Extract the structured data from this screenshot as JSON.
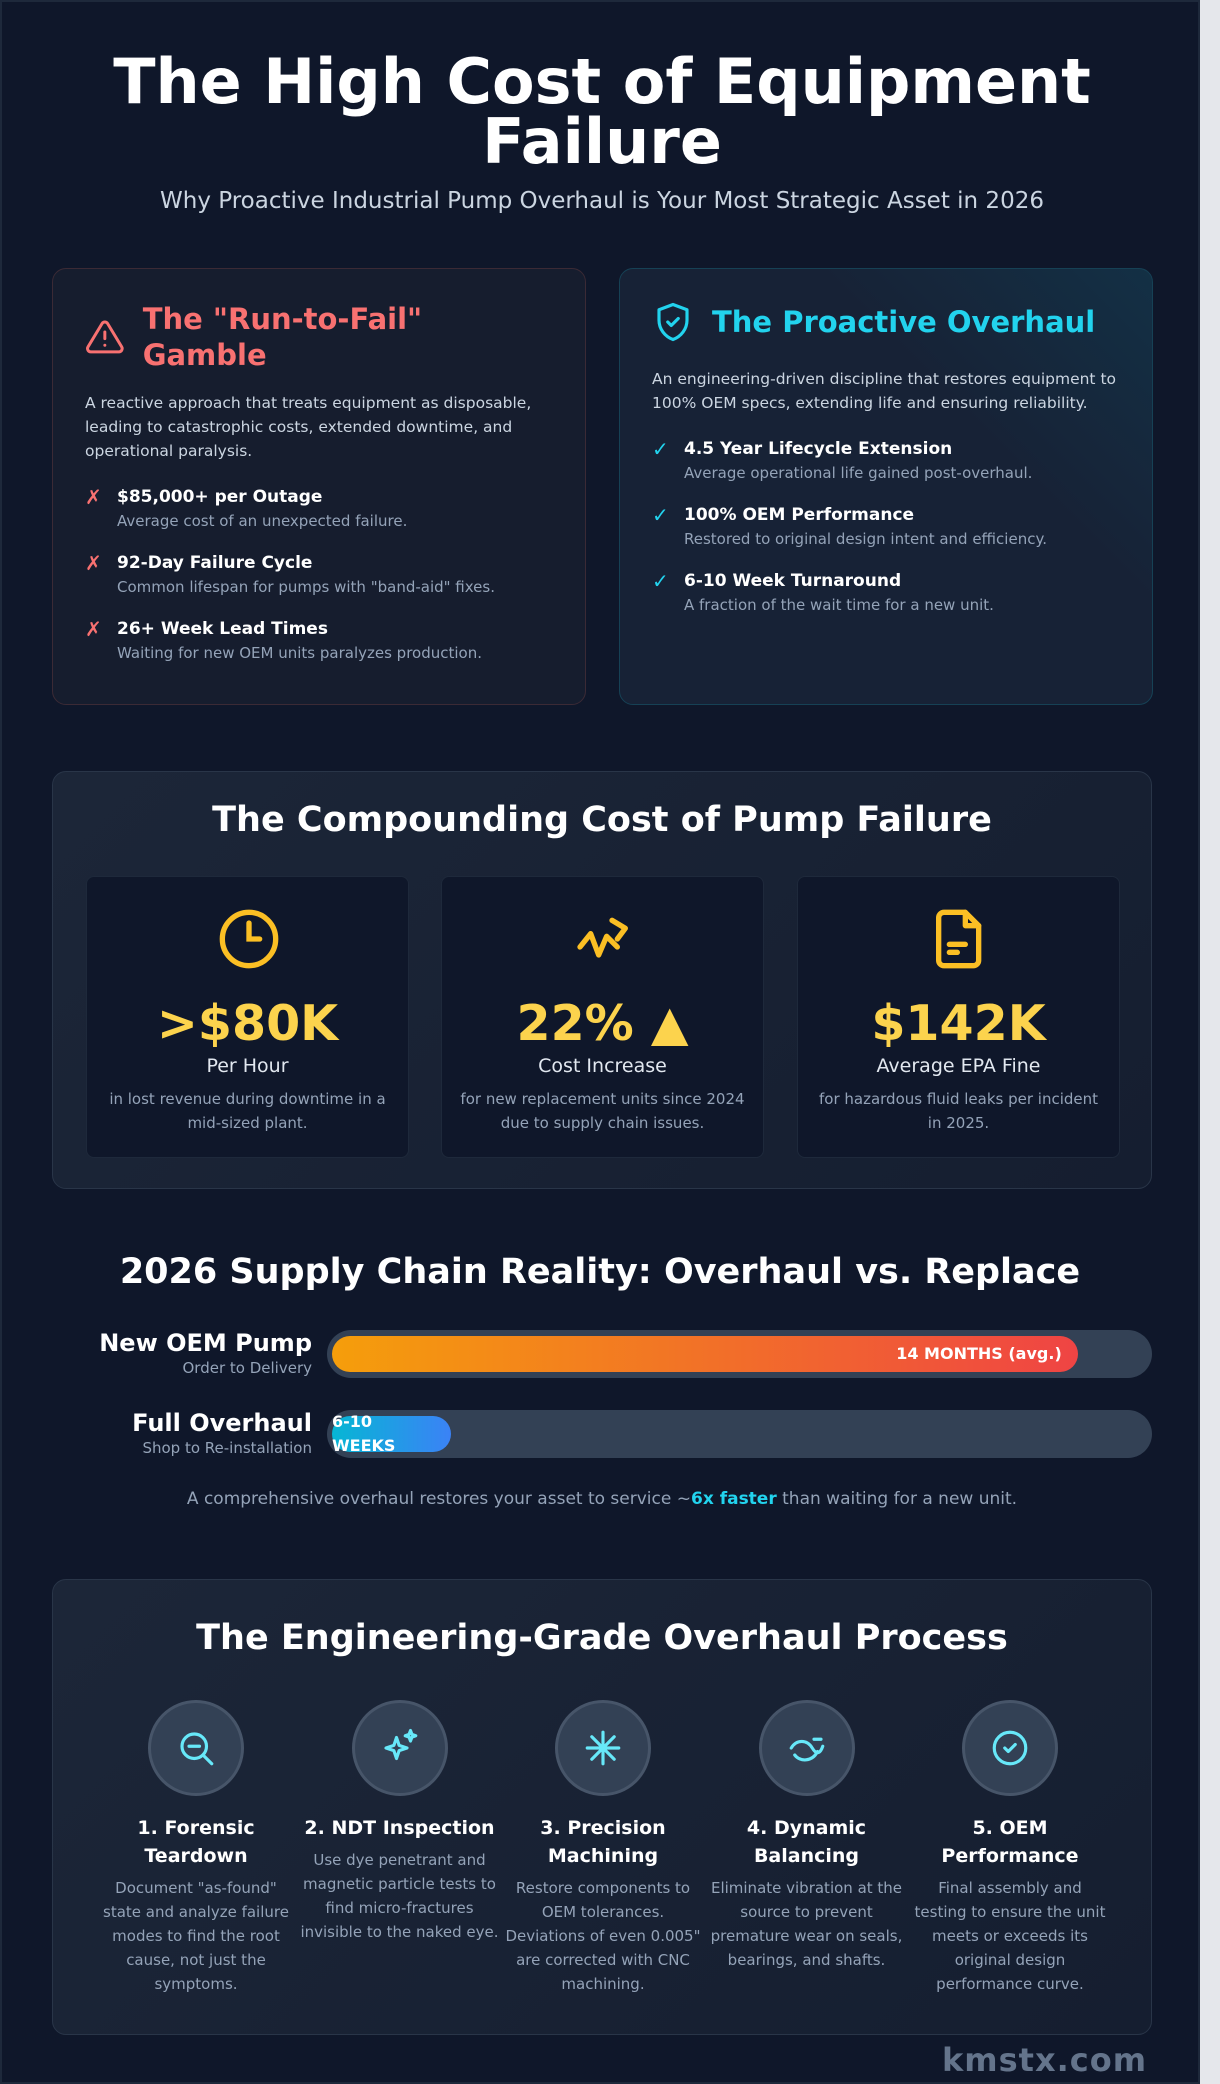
{
  "header": {
    "title_line1": "The High Cost of Equipment",
    "title_line2": "Failure",
    "subtitle": "Why Proactive Industrial Pump Overhaul is Your Most Strategic Asset in 2026"
  },
  "run_to_fail": {
    "icon": "warning-triangle-icon",
    "title": "The \"Run-to-Fail\" Gamble",
    "description": "A reactive approach that treats equipment as disposable, leading to catastrophic costs, extended downtime, and operational paralysis.",
    "items": [
      {
        "title": "$85,000+ per Outage",
        "detail": "Average cost of an unexpected failure."
      },
      {
        "title": "92-Day Failure Cycle",
        "detail": "Common lifespan for pumps with \"band-aid\" fixes."
      },
      {
        "title": "26+ Week Lead Times",
        "detail": "Waiting for new OEM units paralyzes production."
      }
    ],
    "mark": "✗",
    "color": "#f87171"
  },
  "proactive": {
    "icon": "shield-check-icon",
    "title": "The Proactive Overhaul",
    "description": "An engineering-driven discipline that restores equipment to 100% OEM specs, extending life and ensuring reliability.",
    "items": [
      {
        "title": "4.5 Year Lifecycle Extension",
        "detail": "Average operational life gained post-overhaul."
      },
      {
        "title": "100% OEM Performance",
        "detail": "Restored to original design intent and efficiency."
      },
      {
        "title": "6-10 Week Turnaround",
        "detail": "A fraction of the wait time for a new unit."
      }
    ],
    "mark": "✓",
    "color": "#22d3ee"
  },
  "compounding": {
    "title": "The Compounding Cost of Pump Failure",
    "stats": [
      {
        "icon": "clock-icon",
        "value": ">$80K",
        "label": "Per Hour",
        "detail": "in lost revenue during downtime in a mid-sized plant."
      },
      {
        "icon": "trend-up-icon",
        "value": "22% ▲",
        "label": "Cost Increase",
        "detail": "for new replacement units since 2024 due to supply chain issues."
      },
      {
        "icon": "document-icon",
        "value": "$142K",
        "label": "Average EPA Fine",
        "detail": "for hazardous fluid leaks per incident in 2025."
      }
    ],
    "accent": "#fcd34d"
  },
  "supply": {
    "title": "2026 Supply Chain Reality: Overhaul vs. Replace",
    "bars": [
      {
        "label": "New OEM Pump",
        "sublabel": "Order to Delivery",
        "value_text": "14 MONTHS (avg.)",
        "fill_percent": 91
      },
      {
        "label": "Full Overhaul",
        "sublabel": "Shop to Re-installation",
        "value_text": "6-10 WEEKS",
        "fill_percent": 15
      }
    ],
    "note_before": "A comprehensive overhaul restores your asset to service ~",
    "note_highlight": "6x faster",
    "note_after": " than waiting for a new unit."
  },
  "process": {
    "title": "The Engineering-Grade Overhaul Process",
    "steps": [
      {
        "icon": "magnifier-minus-icon",
        "title": "1. Forensic Teardown",
        "detail": "Document \"as-found\" state and analyze failure modes to find the root cause, not just the symptoms."
      },
      {
        "icon": "sparkles-icon",
        "title": "2. NDT Inspection",
        "detail": "Use dye penetrant and magnetic particle tests to find micro-fractures invisible to the naked eye."
      },
      {
        "icon": "asterisk-icon",
        "title": "3. Precision Machining",
        "detail": "Restore components to OEM tolerances. Deviations of even 0.005\" are corrected with CNC machining."
      },
      {
        "icon": "balance-wave-icon",
        "title": "4. Dynamic Balancing",
        "detail": "Eliminate vibration at the source to prevent premature wear on seals, bearings, and shafts."
      },
      {
        "icon": "check-circle-icon",
        "title": "5. OEM Performance",
        "detail": "Final assembly and testing to ensure the unit meets or exceeds its original design performance curve."
      }
    ]
  },
  "watermark": "kmstx.com"
}
